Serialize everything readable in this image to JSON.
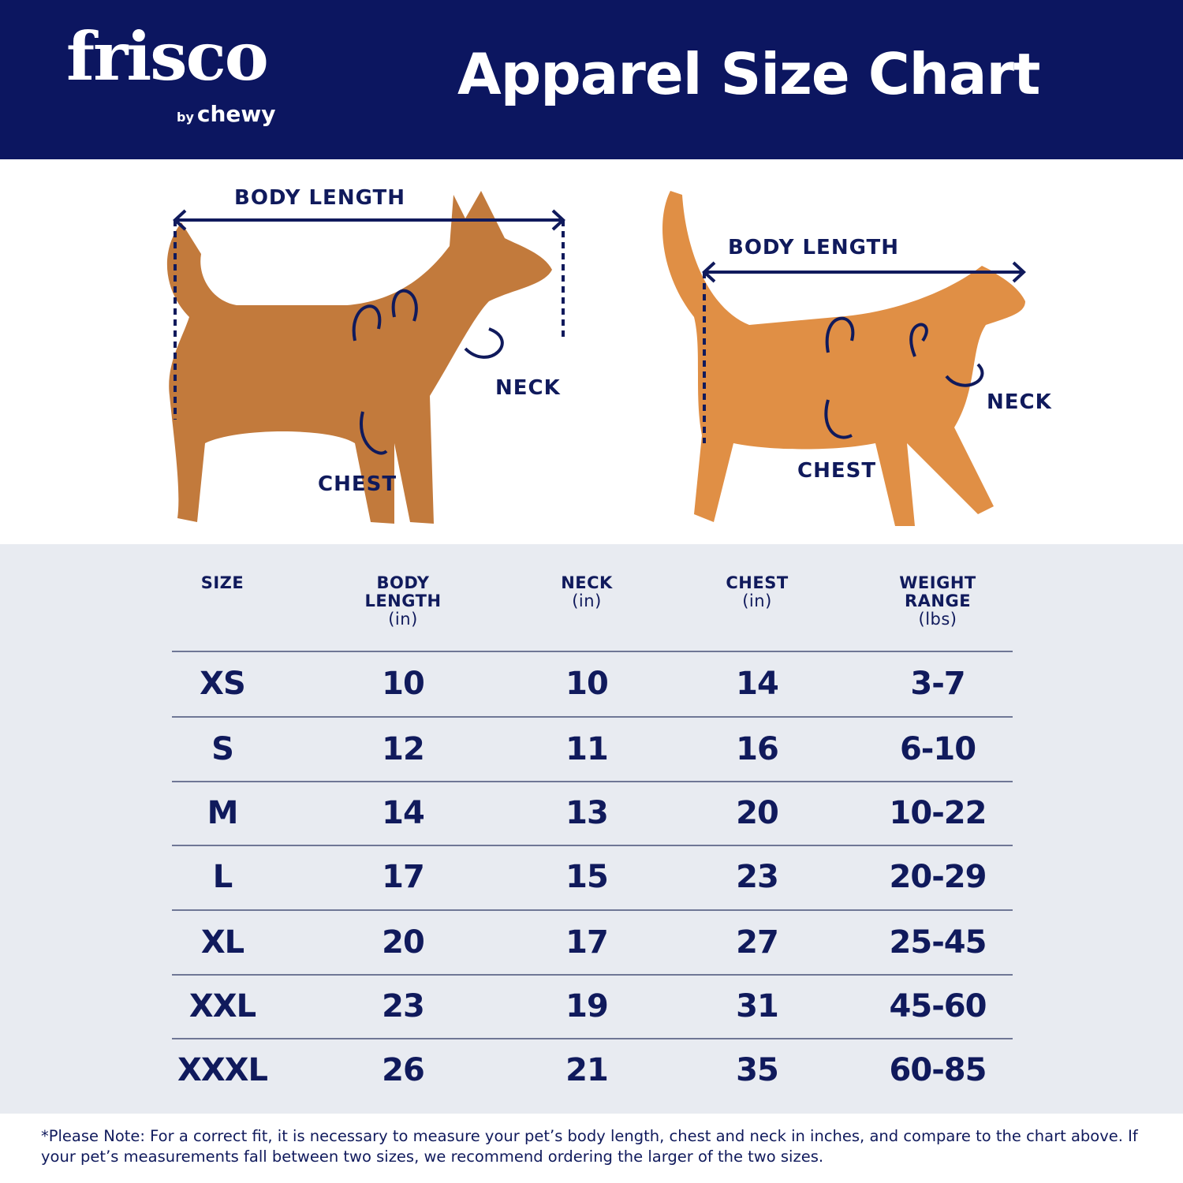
{
  "header": {
    "logo_brand": "frisco",
    "logo_sub_by": "by",
    "logo_sub": "chewy",
    "title": "Apparel Size Chart"
  },
  "diagram": {
    "dog": {
      "body_length": "BODY LENGTH",
      "neck": "NECK",
      "chest": "CHEST"
    },
    "cat": {
      "body_length": "BODY LENGTH",
      "neck": "NECK",
      "chest": "CHEST"
    }
  },
  "table": {
    "headers": [
      {
        "label": "SIZE",
        "unit": ""
      },
      {
        "label": "BODY LENGTH",
        "unit": "(in)"
      },
      {
        "label": "NECK",
        "unit": "(in)"
      },
      {
        "label": "CHEST",
        "unit": "(in)"
      },
      {
        "label": "WEIGHT RANGE",
        "unit": "(lbs)"
      }
    ],
    "rows": [
      [
        "XS",
        "10",
        "10",
        "14",
        "3-7"
      ],
      [
        "S",
        "12",
        "11",
        "16",
        "6-10"
      ],
      [
        "M",
        "14",
        "13",
        "20",
        "10-22"
      ],
      [
        "L",
        "17",
        "15",
        "23",
        "20-29"
      ],
      [
        "XL",
        "20",
        "17",
        "27",
        "25-45"
      ],
      [
        "XXL",
        "23",
        "19",
        "31",
        "45-60"
      ],
      [
        "XXXL",
        "26",
        "21",
        "35",
        "60-85"
      ]
    ]
  },
  "note": "*Please Note: For a correct fit, it is necessary to measure your pet’s body length, chest and neck in inches, and compare to the chart above. If your pet’s measurements fall between two sizes, we recommend ordering the larger of the two sizes.",
  "colors": {
    "navy": "#0c1660",
    "table_bg": "#e8ebf1",
    "dog": "#c27a3c",
    "cat": "#e08f45"
  }
}
